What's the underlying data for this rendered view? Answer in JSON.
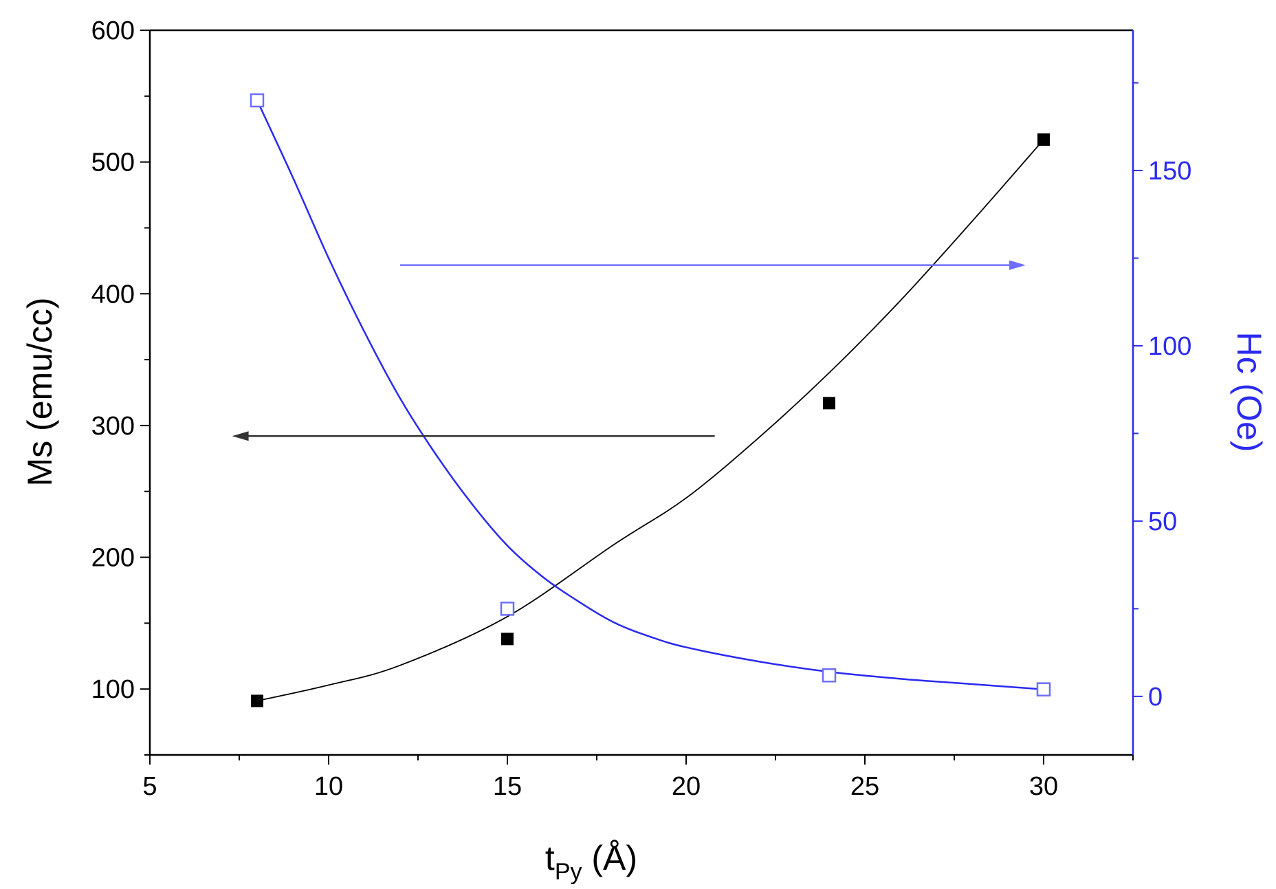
{
  "colors": {
    "ms": "#000000",
    "hc": "#2a2af0",
    "hc_arrow": "#6d6dff",
    "ms_arrow": "#333333"
  },
  "chart_data": {
    "type": "scatter",
    "xlabel": {
      "main": "t",
      "sub": "Py",
      "rest": " (Å)"
    },
    "ylabel_left": "Ms (emu/cc)",
    "ylabel_right": "Hc (Oe)",
    "xlim": [
      5,
      32.5
    ],
    "ylim_left": [
      50,
      600
    ],
    "ylim_right": [
      -16.7,
      190
    ],
    "x_ticks": [
      5,
      10,
      15,
      20,
      25,
      30
    ],
    "y_left_ticks": [
      100,
      200,
      300,
      400,
      500,
      600
    ],
    "y_right_ticks": [
      0,
      50,
      100,
      150
    ],
    "series": [
      {
        "axis": "left",
        "marker": "filled-square",
        "x": [
          8,
          15,
          24,
          30
        ],
        "y": [
          91,
          138,
          317,
          517
        ],
        "fit": [
          [
            8,
            91
          ],
          [
            10,
            103
          ],
          [
            12,
            118
          ],
          [
            15,
            155
          ],
          [
            18,
            210
          ],
          [
            20,
            245
          ],
          [
            22,
            290
          ],
          [
            24,
            340
          ],
          [
            26,
            395
          ],
          [
            28,
            455
          ],
          [
            30,
            517
          ]
        ]
      },
      {
        "axis": "right",
        "marker": "open-square",
        "x": [
          8,
          15,
          24,
          30
        ],
        "y": [
          170,
          25,
          6,
          2
        ],
        "fit": [
          [
            8,
            170
          ],
          [
            9,
            148
          ],
          [
            10,
            125
          ],
          [
            11,
            104
          ],
          [
            12,
            85
          ],
          [
            13,
            69
          ],
          [
            14,
            55
          ],
          [
            15,
            43
          ],
          [
            16,
            34
          ],
          [
            17,
            27
          ],
          [
            18,
            21
          ],
          [
            19,
            17
          ],
          [
            20,
            14
          ],
          [
            22,
            10
          ],
          [
            24,
            7
          ],
          [
            26,
            5
          ],
          [
            28,
            3.5
          ],
          [
            30,
            2
          ]
        ]
      }
    ],
    "annotations": [
      {
        "type": "arrow",
        "axis": "right",
        "from": [
          12,
          123
        ],
        "to": [
          29.5,
          123
        ],
        "points_to": "right-axis"
      },
      {
        "type": "arrow",
        "axis": "left",
        "from": [
          20.8,
          292
        ],
        "to": [
          7.3,
          292
        ],
        "points_to": "left-axis"
      }
    ]
  }
}
